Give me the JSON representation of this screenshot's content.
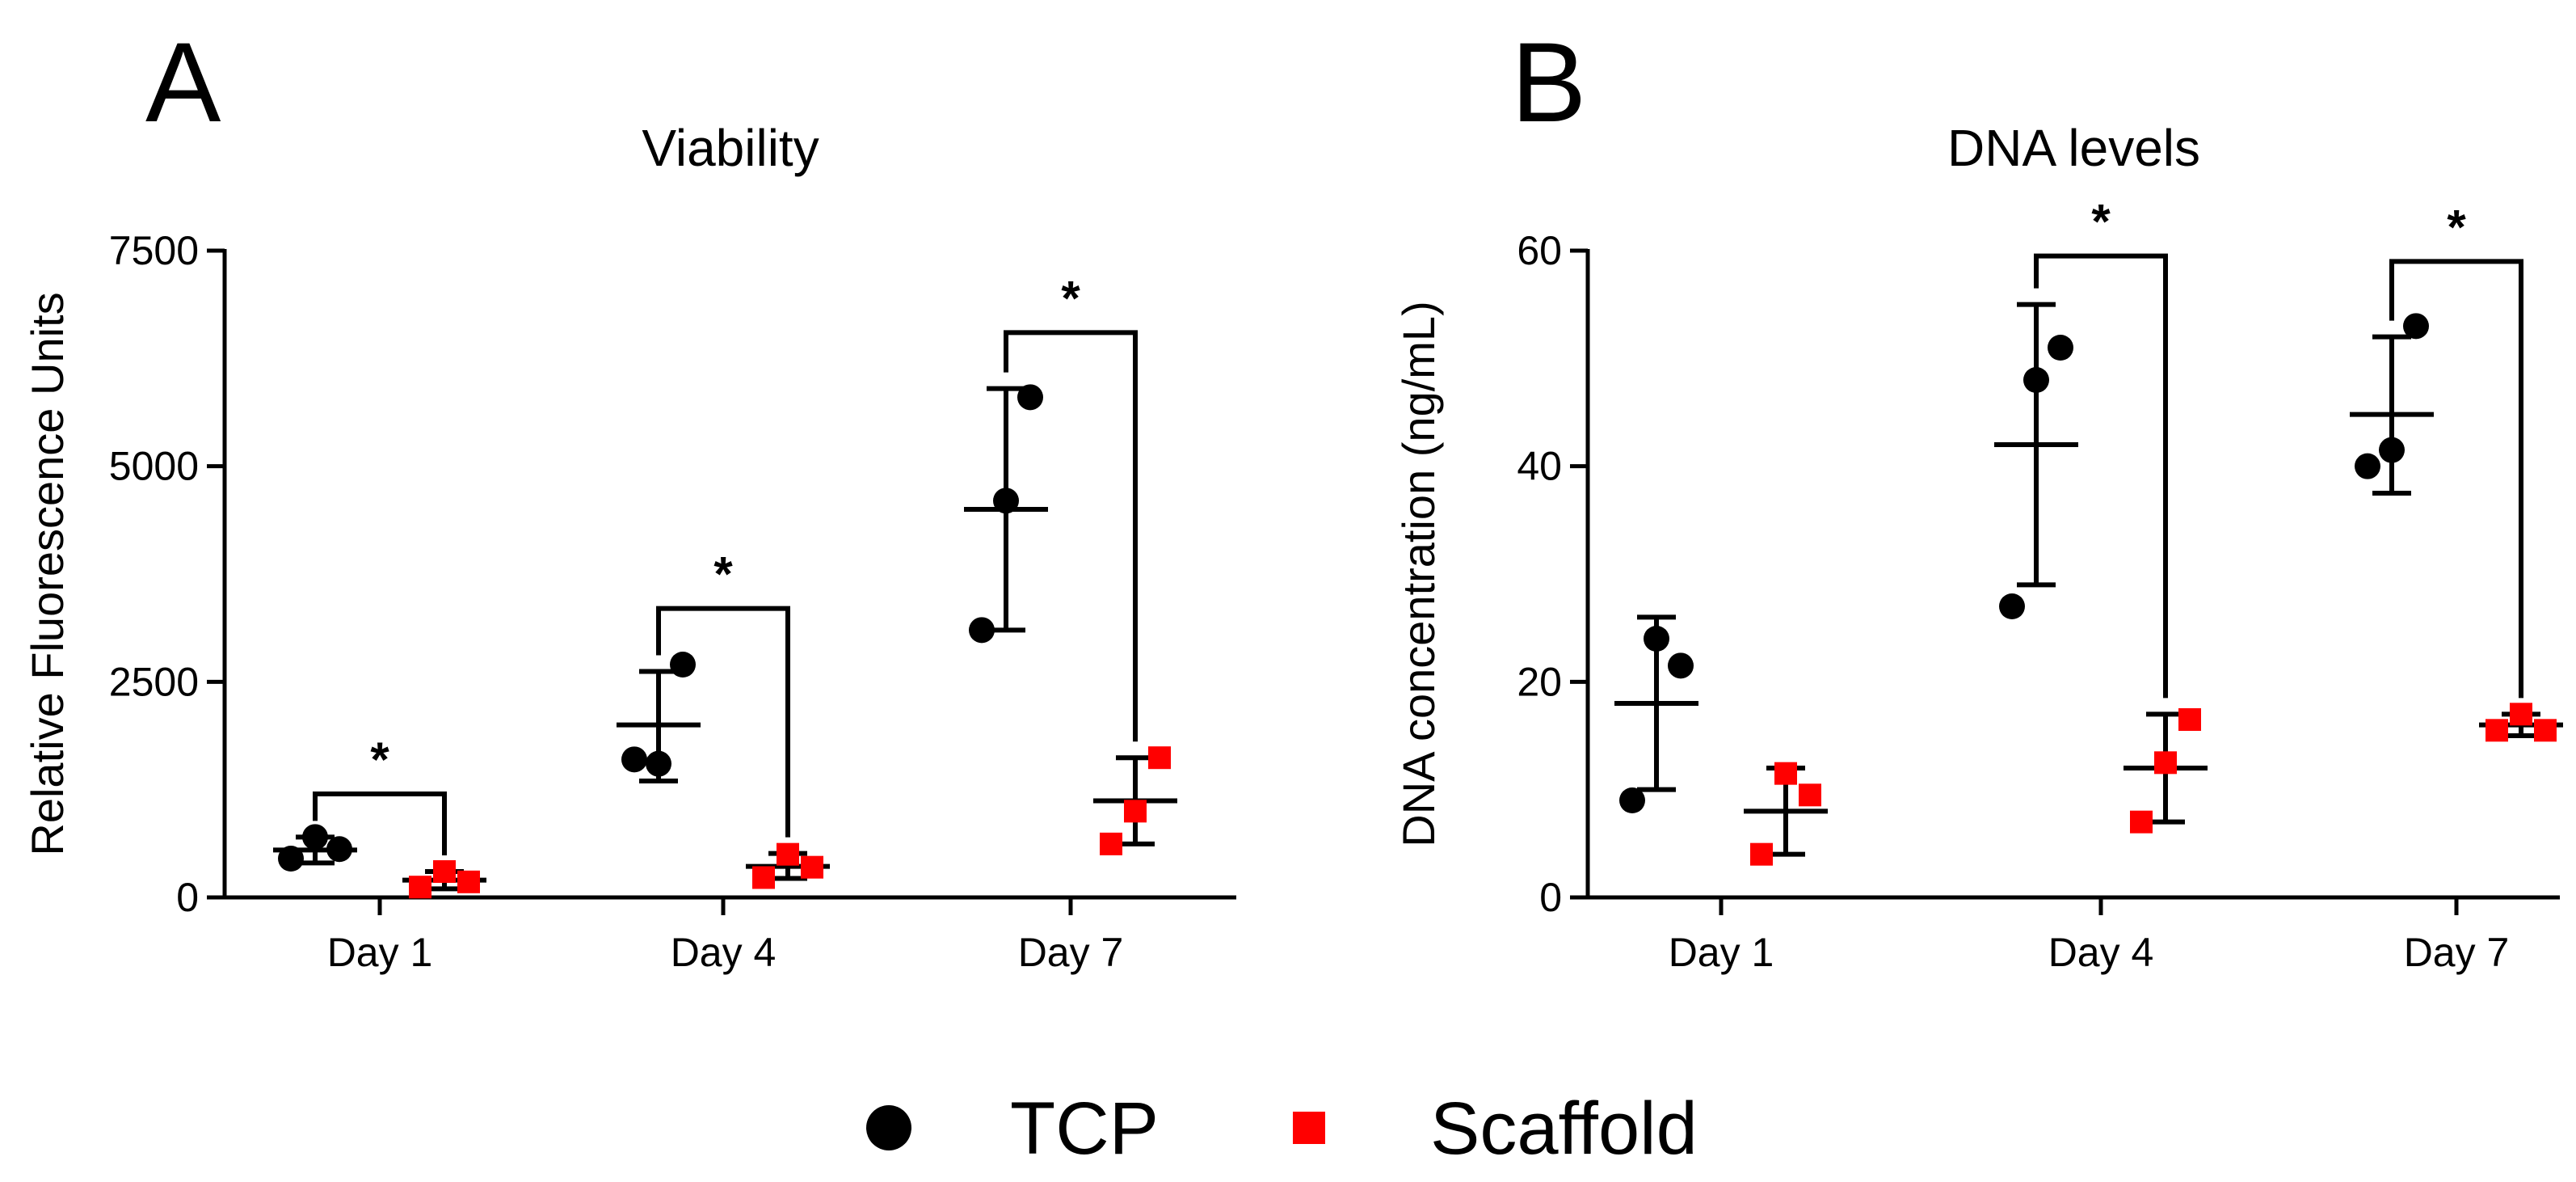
{
  "colors": {
    "tcp": "#000000",
    "scaffold": "#ff0000",
    "axis": "#000000"
  },
  "legend": [
    {
      "label": "TCP",
      "marker": "circle",
      "color": "#000000"
    },
    {
      "label": "Scaffold",
      "marker": "square",
      "color": "#ff0000"
    }
  ],
  "chart_data": [
    {
      "panel": "A",
      "type": "scatter",
      "title": "Viability",
      "xlabel": "",
      "ylabel": "Relative Fluorescence Units",
      "categories": [
        "Day 1",
        "Day 4",
        "Day 7"
      ],
      "ylim": [
        0,
        7500
      ],
      "yticks": [
        0,
        2500,
        5000,
        7500
      ],
      "series": [
        {
          "name": "TCP",
          "marker": "circle",
          "points": [
            [
              450,
              700,
              560
            ],
            [
              1600,
              1550,
              2700
            ],
            [
              3100,
              4600,
              5800
            ]
          ],
          "mean": [
            550,
            2000,
            4500
          ],
          "sd_low": [
            400,
            1350,
            3100
          ],
          "sd_high": [
            700,
            2620,
            5900
          ]
        },
        {
          "name": "Scaffold",
          "marker": "square",
          "points": [
            [
              120,
              300,
              180
            ],
            [
              230,
              500,
              350
            ],
            [
              620,
              1000,
              1620
            ]
          ],
          "mean": [
            200,
            360,
            1120
          ],
          "sd_low": [
            100,
            220,
            620
          ],
          "sd_high": [
            300,
            510,
            1620
          ]
        }
      ],
      "significance": [
        {
          "category": "Day 1",
          "label": "*",
          "level": 1200
        },
        {
          "category": "Day 4",
          "label": "*",
          "level": 3350
        },
        {
          "category": "Day 7",
          "label": "*",
          "level": 6550
        }
      ]
    },
    {
      "panel": "B",
      "type": "scatter",
      "title": "DNA levels",
      "xlabel": "",
      "ylabel": "DNA concentration (ng/mL)",
      "categories": [
        "Day 1",
        "Day 4",
        "Day 7"
      ],
      "ylim": [
        0,
        60
      ],
      "yticks": [
        0,
        20,
        40,
        60
      ],
      "series": [
        {
          "name": "TCP",
          "marker": "circle",
          "points": [
            [
              9,
              24,
              21.5
            ],
            [
              27,
              48,
              51
            ],
            [
              40,
              41.5,
              53
            ]
          ],
          "mean": [
            18,
            42,
            44.8
          ],
          "sd_low": [
            10,
            29,
            37.5
          ],
          "sd_high": [
            26,
            55,
            52
          ]
        },
        {
          "name": "Scaffold",
          "marker": "square",
          "points": [
            [
              4,
              11.5,
              9.5
            ],
            [
              7,
              12.5,
              16.5
            ],
            [
              15.5,
              17,
              15.5
            ]
          ],
          "mean": [
            8,
            12,
            16
          ],
          "sd_low": [
            4,
            7,
            15
          ],
          "sd_high": [
            12,
            17,
            17
          ]
        }
      ],
      "significance": [
        {
          "category": "Day 4",
          "label": "*",
          "level": 59.5
        },
        {
          "category": "Day 7",
          "label": "*",
          "level": 59
        }
      ]
    }
  ]
}
